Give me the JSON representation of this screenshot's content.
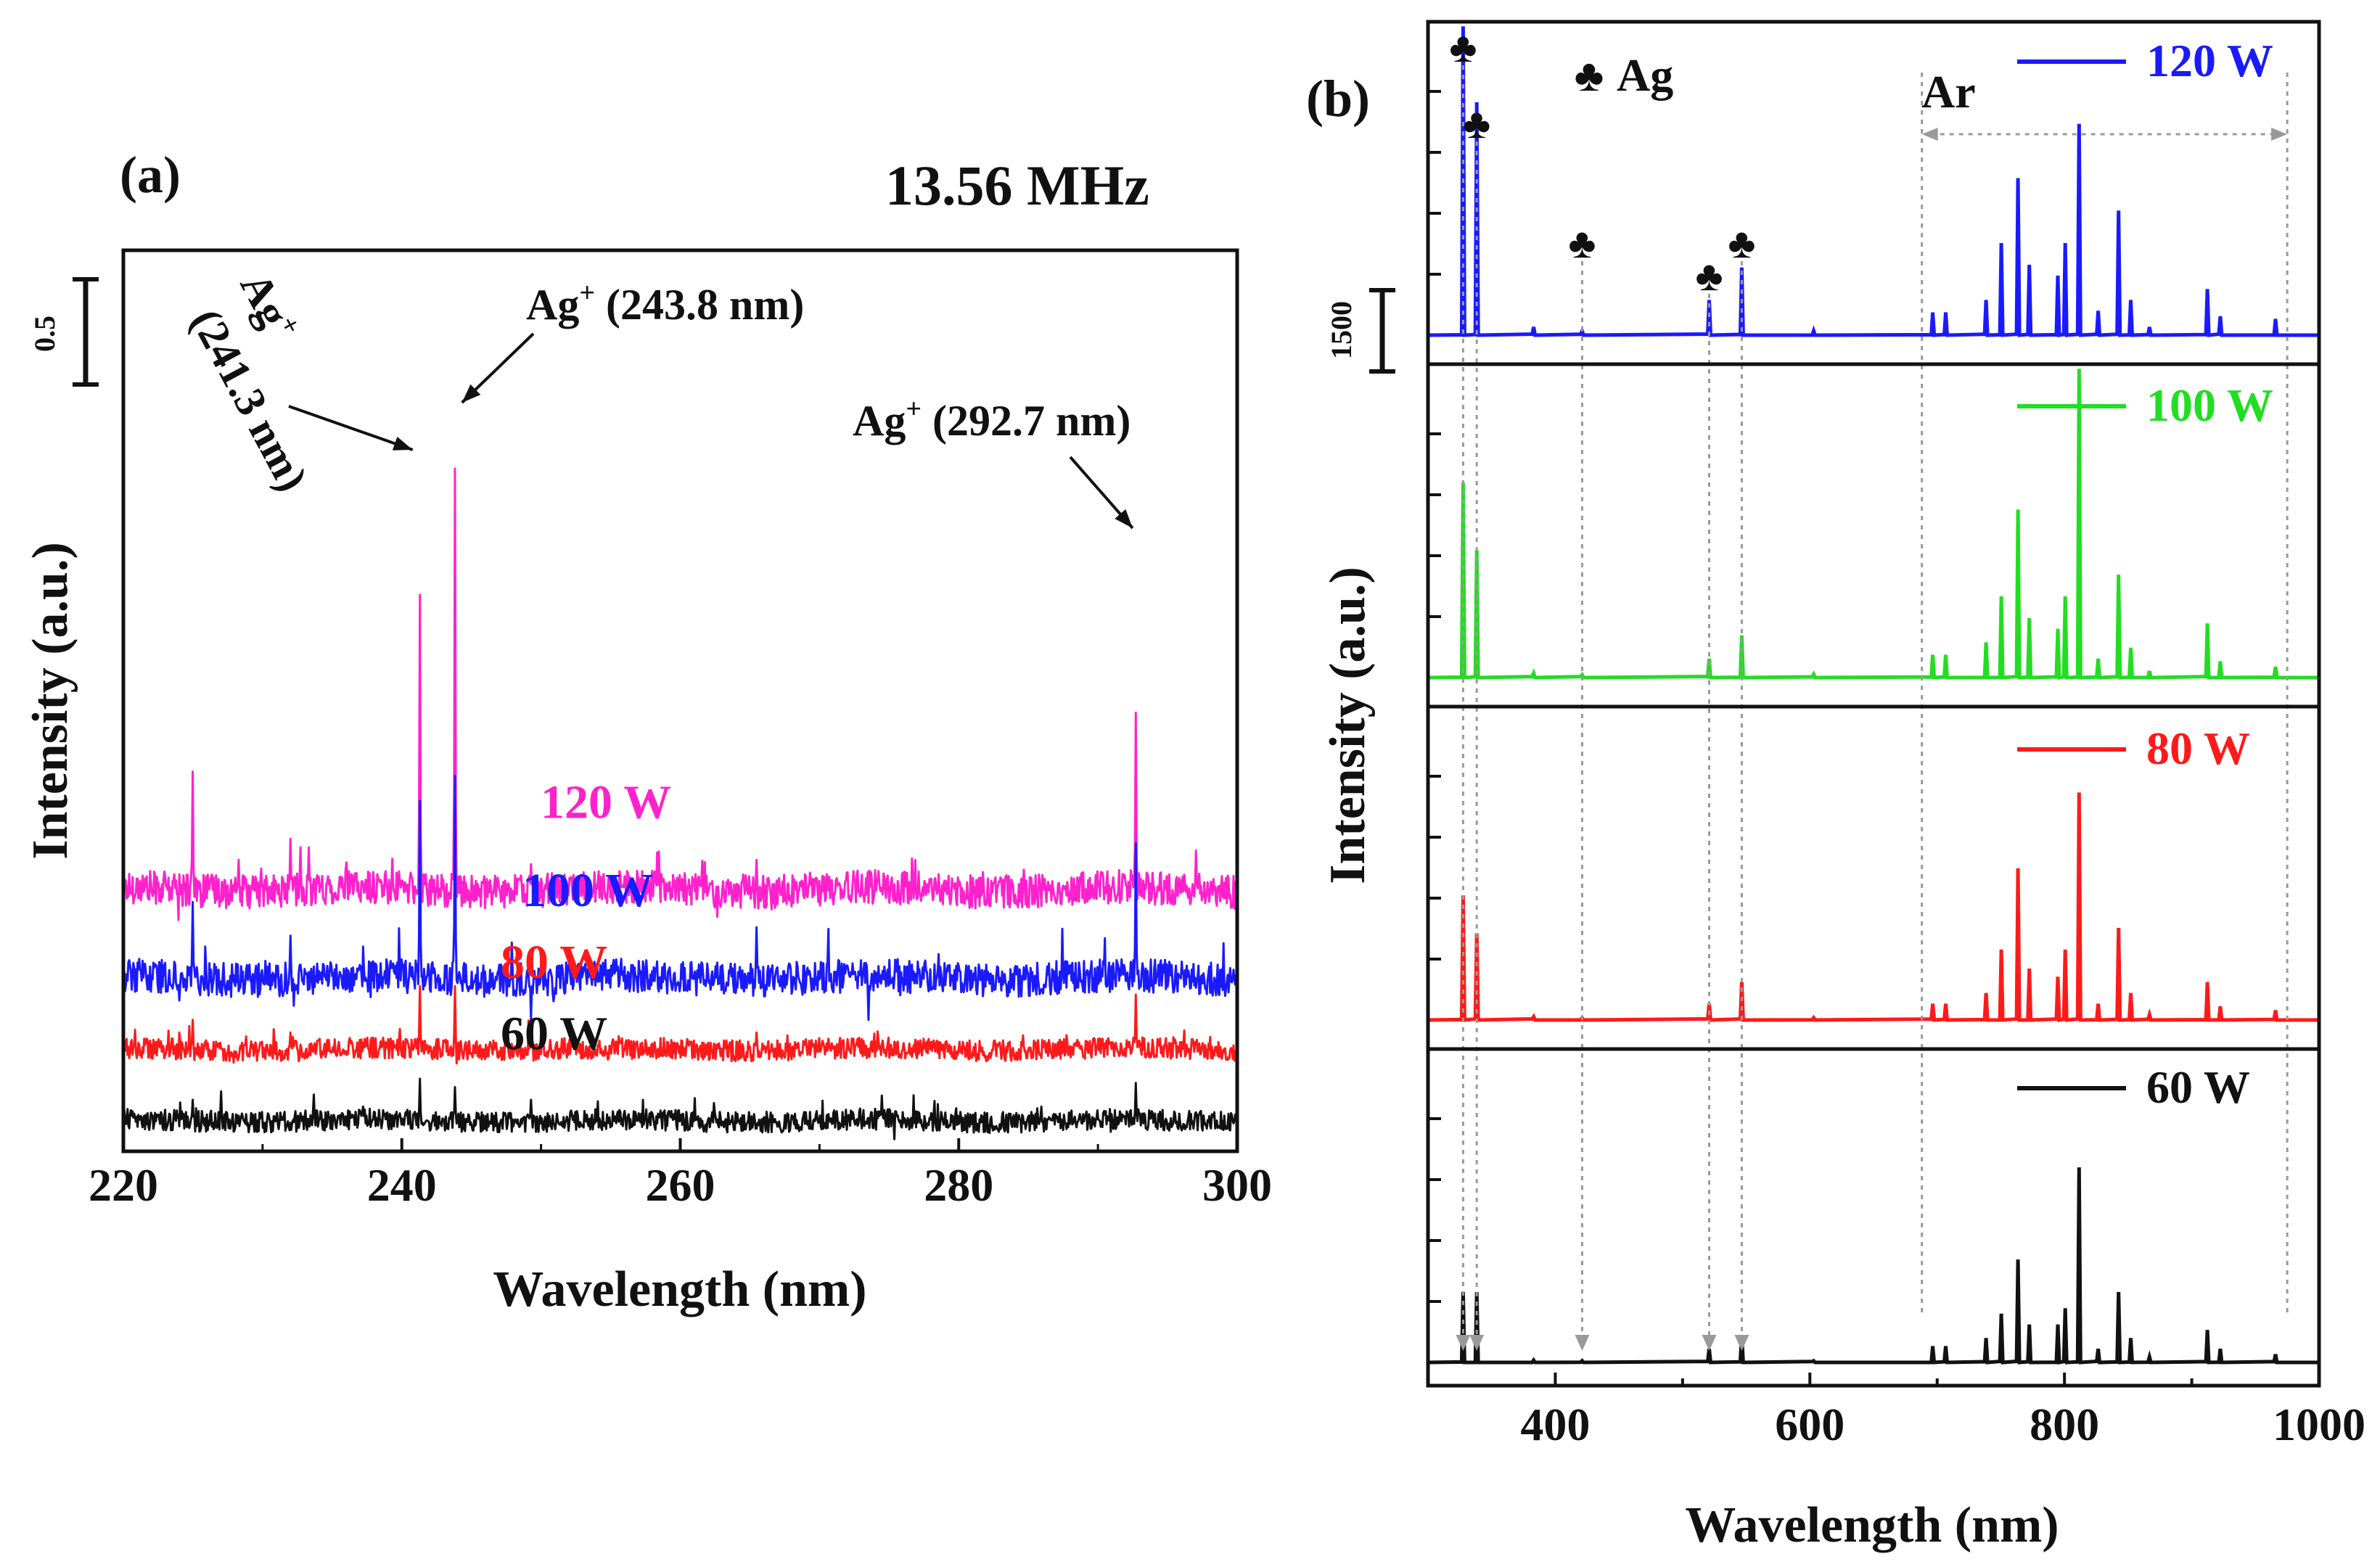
{
  "figure": {
    "frequency_label": "13.56 MHz"
  },
  "chart_data": [
    {
      "panel": "(a)",
      "type": "line",
      "title": "13.56 MHz",
      "xlabel": "Wavelength (nm)",
      "ylabel": "Intensity (a.u.)",
      "xlim": [
        220,
        300
      ],
      "xticks": [
        220,
        240,
        260,
        280,
        300
      ],
      "grid": false,
      "scale_bar": {
        "label": "0.5",
        "value": 0.5
      },
      "series": [
        {
          "name": "120 W",
          "color": "#ff22cc",
          "baseline": 0.55,
          "noise": 0.04,
          "peaks": [
            [
              225.0,
              0.28
            ],
            [
              228.3,
              0.07
            ],
            [
              232.0,
              0.12
            ],
            [
              232.7,
              0.1
            ],
            [
              233.3,
              0.1
            ],
            [
              241.3,
              0.7
            ],
            [
              243.8,
              1.0
            ],
            [
              249.3,
              0.06
            ],
            [
              265.5,
              0.07
            ],
            [
              292.7,
              0.42
            ]
          ]
        },
        {
          "name": "100 W",
          "color": "#1a1aff",
          "baseline": 0.34,
          "noise": 0.04,
          "peaks": [
            [
              225.0,
              0.18
            ],
            [
              232.0,
              0.1
            ],
            [
              241.3,
              0.42
            ],
            [
              243.8,
              0.48
            ],
            [
              249.3,
              -0.1
            ],
            [
              265.5,
              0.12
            ],
            [
              273.5,
              -0.1
            ],
            [
              292.7,
              0.32
            ]
          ]
        },
        {
          "name": "80 W",
          "color": "#ff1a1a",
          "baseline": 0.17,
          "noise": 0.025,
          "peaks": [
            [
              225.0,
              0.07
            ],
            [
              232.0,
              0.04
            ],
            [
              241.3,
              0.15
            ],
            [
              243.8,
              0.15
            ],
            [
              249.3,
              0.04
            ],
            [
              265.5,
              0.04
            ],
            [
              292.7,
              0.13
            ]
          ]
        },
        {
          "name": "60 W",
          "color": "#111111",
          "baseline": 0.0,
          "noise": 0.025,
          "peaks": [
            [
              225.0,
              0.05
            ],
            [
              227.0,
              0.07
            ],
            [
              241.3,
              0.1
            ],
            [
              243.8,
              0.08
            ],
            [
              249.3,
              0.05
            ],
            [
              274.5,
              0.06
            ],
            [
              292.7,
              0.09
            ]
          ]
        }
      ],
      "annotations": [
        {
          "label": "Ag",
          "sup": "+",
          "detail": "(241.3 nm)",
          "x": 241.3
        },
        {
          "label": "Ag",
          "sup": "+",
          "detail": "(243.8 nm)",
          "x": 243.8
        },
        {
          "label": "Ag",
          "sup": "+",
          "detail": "(292.7 nm)",
          "x": 292.7
        }
      ]
    },
    {
      "panel": "(b)",
      "type": "line",
      "xlabel": "Wavelength (nm)",
      "ylabel": "Intensity (a.u.)",
      "xlim": [
        300,
        1000
      ],
      "xticks": [
        400,
        600,
        800,
        1000
      ],
      "grid": false,
      "scale_bar": {
        "label": "1500",
        "value": 1500
      },
      "ylim_per_panel": [
        0,
        6000
      ],
      "ag_legend": "Ag",
      "ag_symbol": "♣",
      "ar_label": "Ar",
      "ar_range": [
        688,
        975
      ],
      "ag_markers": [
        327.6,
        338.3,
        421.1,
        520.9,
        546.5
      ],
      "series": [
        {
          "name": "120 W",
          "color": "#1a1aff",
          "lines": [
            [
              327.6,
              5700
            ],
            [
              338.3,
              4300
            ],
            [
              383,
              150
            ],
            [
              421.1,
              80
            ],
            [
              520.9,
              650
            ],
            [
              546.5,
              1250
            ],
            [
              603,
              80
            ],
            [
              696.5,
              420
            ],
            [
              706.7,
              420
            ],
            [
              738.4,
              650
            ],
            [
              750.4,
              1700
            ],
            [
              763.5,
              2900
            ],
            [
              772.4,
              1300
            ],
            [
              794.8,
              1100
            ],
            [
              800.6,
              1700
            ],
            [
              811.5,
              3900
            ],
            [
              826.5,
              450
            ],
            [
              842.5,
              2300
            ],
            [
              852.1,
              650
            ],
            [
              866.8,
              150
            ],
            [
              912.3,
              850
            ],
            [
              922.4,
              350
            ],
            [
              965.8,
              300
            ]
          ]
        },
        {
          "name": "100 W",
          "color": "#22dd22",
          "lines": [
            [
              327.6,
              3600
            ],
            [
              338.3,
              2350
            ],
            [
              383,
              80
            ],
            [
              421.1,
              50
            ],
            [
              520.9,
              350
            ],
            [
              546.5,
              780
            ],
            [
              603,
              60
            ],
            [
              696.5,
              420
            ],
            [
              706.7,
              420
            ],
            [
              738.4,
              650
            ],
            [
              750.4,
              1500
            ],
            [
              763.5,
              3100
            ],
            [
              772.4,
              1100
            ],
            [
              794.8,
              900
            ],
            [
              800.6,
              1500
            ],
            [
              811.5,
              5700
            ],
            [
              826.5,
              350
            ],
            [
              842.5,
              1900
            ],
            [
              852.1,
              550
            ],
            [
              866.8,
              120
            ],
            [
              912.3,
              1000
            ],
            [
              922.4,
              300
            ],
            [
              965.8,
              200
            ]
          ]
        },
        {
          "name": "80 W",
          "color": "#ff1a1a",
          "lines": [
            [
              327.6,
              2300
            ],
            [
              338.3,
              1600
            ],
            [
              383,
              60
            ],
            [
              421.1,
              40
            ],
            [
              520.9,
              300
            ],
            [
              546.5,
              700
            ],
            [
              603,
              40
            ],
            [
              696.5,
              300
            ],
            [
              706.7,
              300
            ],
            [
              738.4,
              500
            ],
            [
              750.4,
              1300
            ],
            [
              763.5,
              2800
            ],
            [
              772.4,
              950
            ],
            [
              794.8,
              800
            ],
            [
              800.6,
              1300
            ],
            [
              811.5,
              4200
            ],
            [
              826.5,
              300
            ],
            [
              842.5,
              1700
            ],
            [
              852.1,
              500
            ],
            [
              866.8,
              100
            ],
            [
              912.3,
              700
            ],
            [
              922.4,
              250
            ],
            [
              965.8,
              180
            ]
          ]
        },
        {
          "name": "60 W",
          "color": "#111111",
          "lines": [
            [
              327.6,
              1300
            ],
            [
              338.3,
              1300
            ],
            [
              383,
              40
            ],
            [
              421.1,
              30
            ],
            [
              520.9,
              250
            ],
            [
              546.5,
              500
            ],
            [
              603,
              30
            ],
            [
              696.5,
              300
            ],
            [
              706.7,
              300
            ],
            [
              738.4,
              450
            ],
            [
              750.4,
              900
            ],
            [
              763.5,
              1900
            ],
            [
              772.4,
              700
            ],
            [
              794.8,
              700
            ],
            [
              800.6,
              1000
            ],
            [
              811.5,
              3600
            ],
            [
              826.5,
              250
            ],
            [
              842.5,
              1300
            ],
            [
              852.1,
              450
            ],
            [
              866.8,
              100
            ],
            [
              912.3,
              600
            ],
            [
              922.4,
              250
            ],
            [
              965.8,
              150
            ]
          ]
        }
      ]
    }
  ]
}
